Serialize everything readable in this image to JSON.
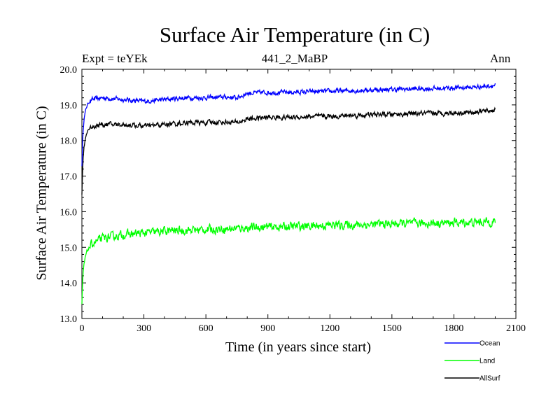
{
  "chart_data": {
    "type": "line",
    "title": "Surface Air Temperature (in C)",
    "subtitle": "441_2_MaBP",
    "experiment": "Expt = teYEk",
    "period": "Ann",
    "xlabel": "Time (in years since start)",
    "ylabel": "Surface Air Temperature (in C)",
    "xlim": [
      0,
      2100
    ],
    "ylim": [
      13.0,
      20.0
    ],
    "xticks": [
      "0",
      "300",
      "600",
      "900",
      "1200",
      "1500",
      "1800",
      "2100"
    ],
    "yticks": [
      "13.0",
      "14.0",
      "15.0",
      "16.0",
      "17.0",
      "18.0",
      "19.0",
      "20.0"
    ],
    "legend_position": "below-right",
    "series": [
      {
        "name": "Ocean",
        "color": "#0000ff",
        "x": [
          0,
          5,
          10,
          20,
          30,
          50,
          100,
          200,
          300,
          400,
          500,
          600,
          700,
          750,
          800,
          900,
          1000,
          1100,
          1200,
          1300,
          1400,
          1500,
          1600,
          1700,
          1800,
          1900,
          2000
        ],
        "y": [
          17.3,
          18.2,
          18.6,
          18.9,
          19.05,
          19.15,
          19.2,
          19.15,
          19.1,
          19.15,
          19.2,
          19.2,
          19.22,
          19.2,
          19.33,
          19.35,
          19.35,
          19.37,
          19.38,
          19.4,
          19.42,
          19.43,
          19.45,
          19.46,
          19.48,
          19.5,
          19.55
        ],
        "noise": 0.1
      },
      {
        "name": "Land",
        "color": "#00ff00",
        "x": [
          0,
          5,
          10,
          20,
          30,
          50,
          100,
          200,
          300,
          400,
          500,
          600,
          700,
          800,
          900,
          1000,
          1100,
          1200,
          1300,
          1400,
          1500,
          1600,
          1700,
          1800,
          1900,
          2000
        ],
        "y": [
          13.4,
          14.2,
          14.5,
          14.8,
          14.95,
          15.1,
          15.25,
          15.35,
          15.4,
          15.45,
          15.48,
          15.5,
          15.52,
          15.55,
          15.57,
          15.58,
          15.6,
          15.62,
          15.63,
          15.64,
          15.66,
          15.67,
          15.68,
          15.69,
          15.7,
          15.72
        ],
        "noise": 0.18
      },
      {
        "name": "AllSurf",
        "color": "#000000",
        "x": [
          0,
          5,
          10,
          20,
          30,
          50,
          100,
          200,
          300,
          400,
          500,
          600,
          700,
          750,
          800,
          900,
          1000,
          1100,
          1200,
          1300,
          1400,
          1500,
          1600,
          1700,
          1800,
          1900,
          2000
        ],
        "y": [
          16.5,
          17.4,
          17.8,
          18.15,
          18.3,
          18.4,
          18.45,
          18.45,
          18.4,
          18.45,
          18.5,
          18.5,
          18.52,
          18.5,
          18.6,
          18.65,
          18.65,
          18.67,
          18.68,
          18.7,
          18.72,
          18.73,
          18.75,
          18.76,
          18.78,
          18.8,
          18.85
        ],
        "noise": 0.11
      }
    ]
  }
}
